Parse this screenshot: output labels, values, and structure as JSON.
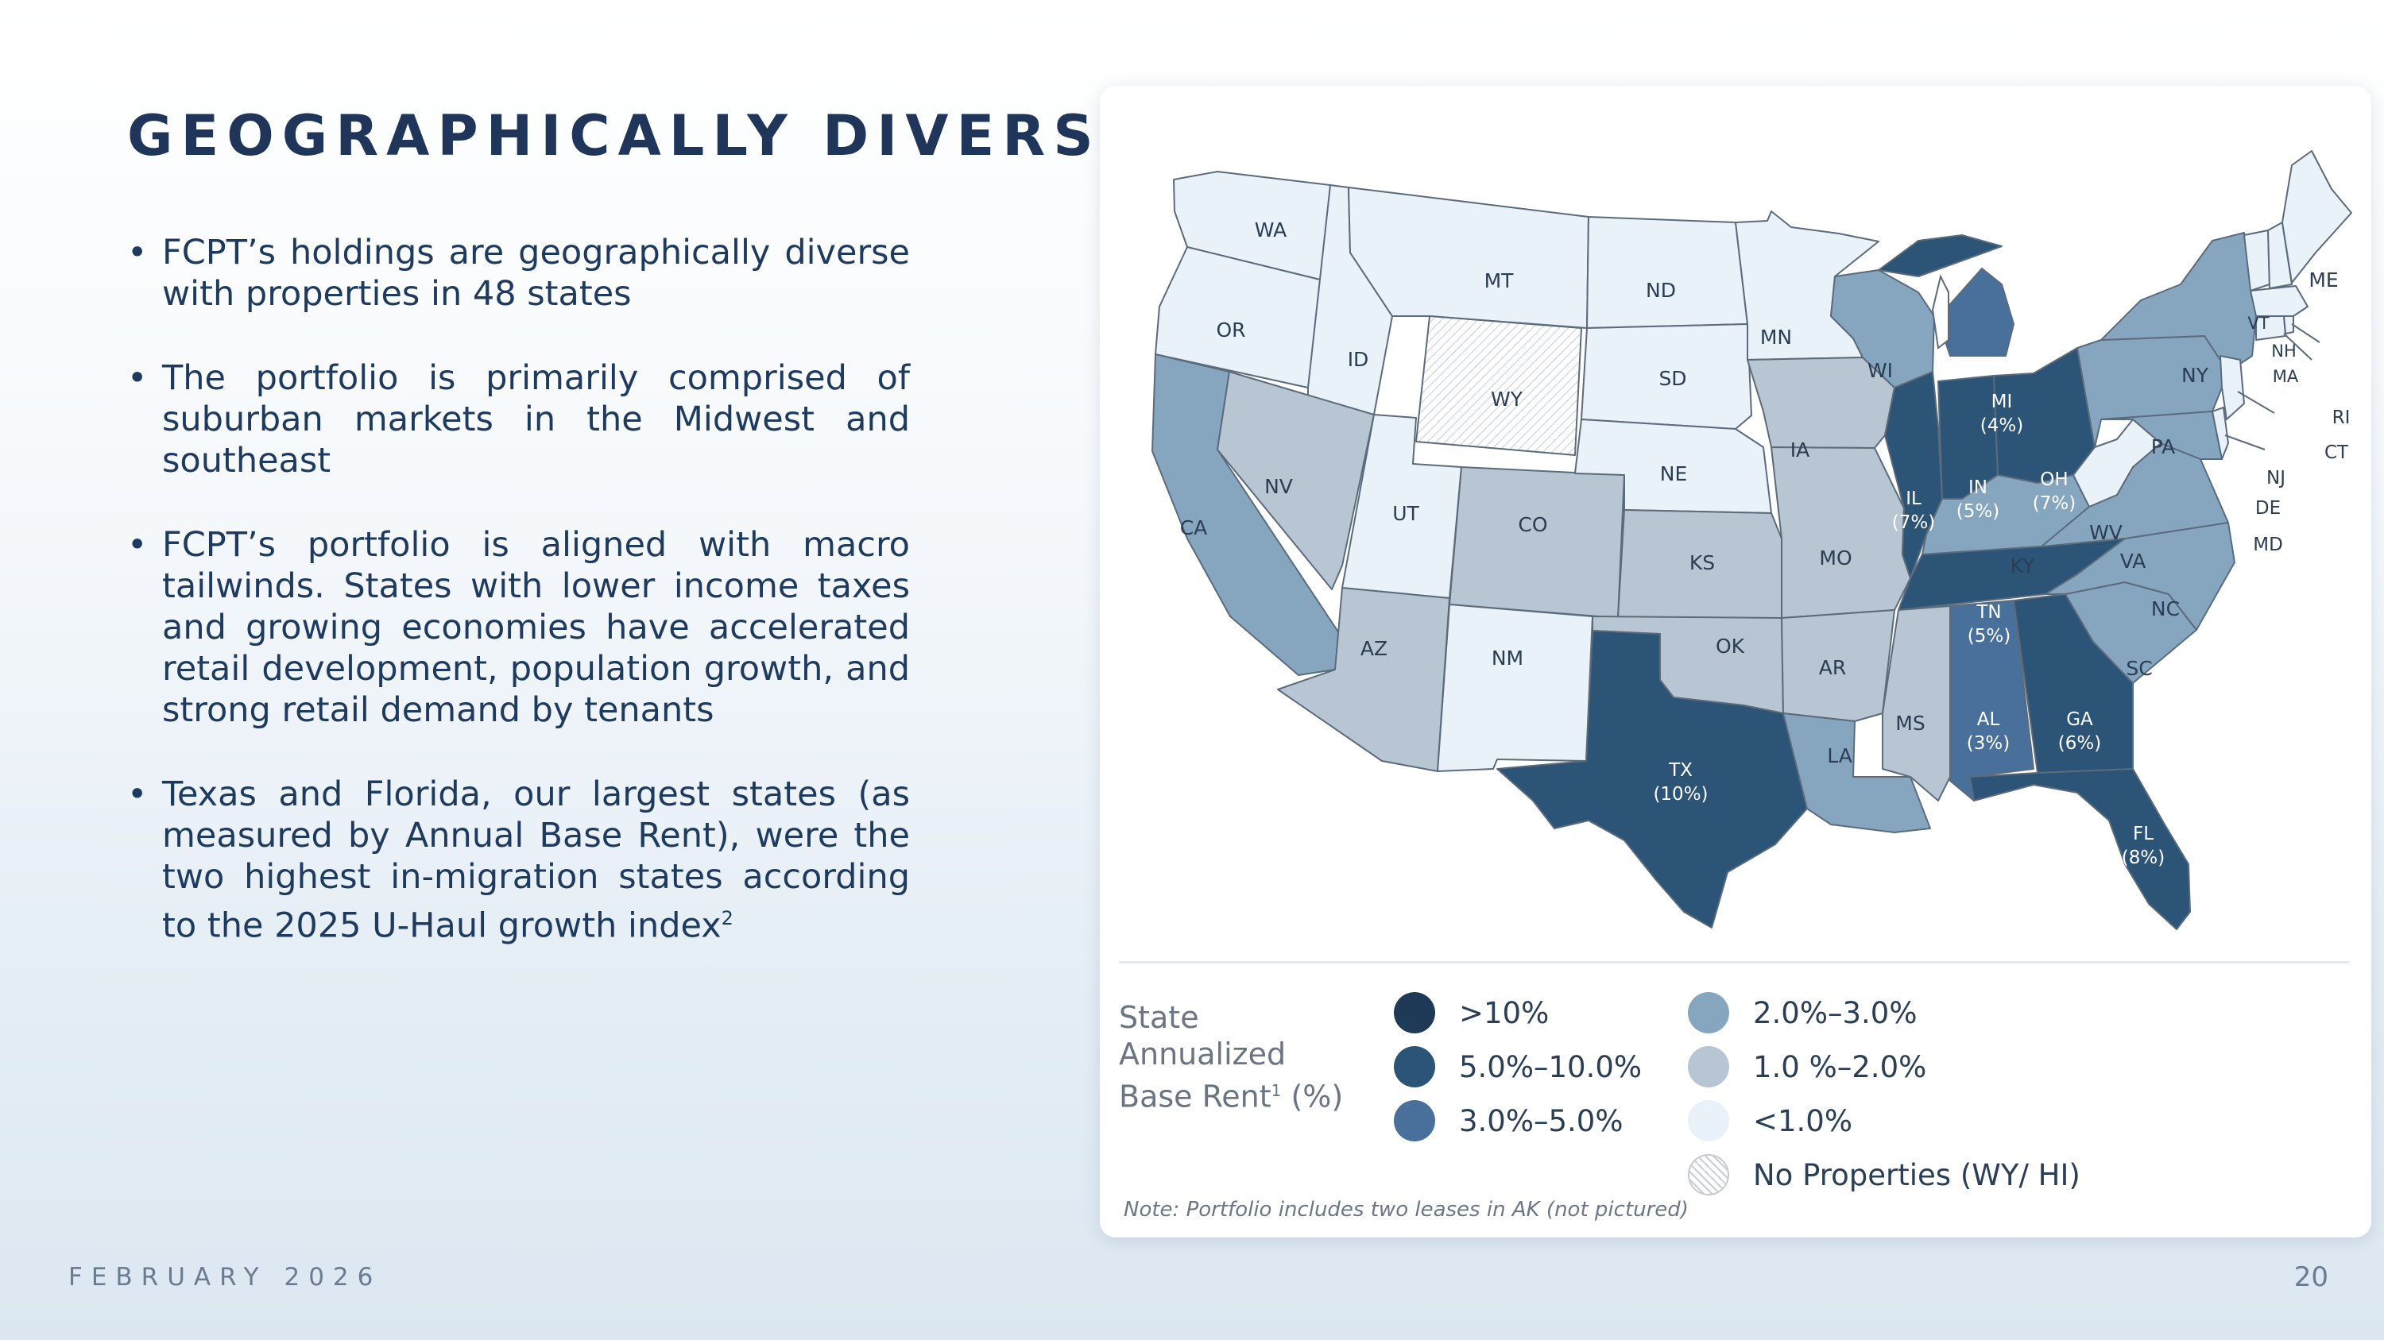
{
  "title": "GEOGRAPHICALLY DIVERSE",
  "bullets": [
    {
      "text": "FCPT’s holdings are geographically diverse with properties in 48 states",
      "sup": ""
    },
    {
      "text": "The portfolio is primarily comprised of suburban markets in the Midwest and southeast",
      "sup": ""
    },
    {
      "text": "FCPT’s portfolio is aligned with macro tailwinds. States with lower income taxes and growing economies have accelerated retail development, population growth, and strong retail demand by tenants",
      "sup": ""
    },
    {
      "text": "Texas and Florida, our largest states (as measured by Annual Base Rent), were the two highest in-migration states according to the 2025 U-Haul growth index",
      "sup": "2"
    }
  ],
  "footer": {
    "date": "FEBRUARY 2026",
    "page": "20"
  },
  "colors": {
    "gt10": "#1e3a57",
    "c5_10": "#2c5477",
    "c3_5": "#48709a",
    "c2_3": "#86a6c0",
    "c1_2": "#b8c5d2",
    "lt1": "#e9f1f9",
    "none": "#ffffff"
  },
  "map": {
    "labels": {
      "WA": "WA",
      "OR": "OR",
      "CA": "CA",
      "ID": "ID",
      "NV": "NV",
      "MT": "MT",
      "WY": "WY",
      "UT": "UT",
      "AZ": "AZ",
      "CO": "CO",
      "NM": "NM",
      "ND": "ND",
      "SD": "SD",
      "NE": "NE",
      "KS": "KS",
      "OK": "OK",
      "MN": "MN",
      "IA": "IA",
      "MO": "MO",
      "AR": "AR",
      "LA": "LA",
      "WI": "WI",
      "MS": "MS",
      "KY": "KY",
      "WV": "WV",
      "VA": "VA",
      "NC": "NC",
      "SC": "SC",
      "PA": "PA",
      "NY": "NY",
      "ME": "ME",
      "VT": "VT",
      "NH": "NH",
      "MA": "MA",
      "RI": "RI",
      "CT": "CT",
      "NJ": "NJ",
      "DE": "DE",
      "MD": "MD"
    },
    "pct_labels": {
      "TX": {
        "abbr": "TX",
        "pct": "(10%)"
      },
      "FL": {
        "abbr": "FL",
        "pct": "(8%)"
      },
      "IL": {
        "abbr": "IL",
        "pct": "(7%)"
      },
      "OH": {
        "abbr": "OH",
        "pct": "(7%)"
      },
      "GA": {
        "abbr": "GA",
        "pct": "(6%)"
      },
      "IN": {
        "abbr": "IN",
        "pct": "(5%)"
      },
      "TN": {
        "abbr": "TN",
        "pct": "(5%)"
      },
      "MI": {
        "abbr": "MI",
        "pct": "(4%)"
      },
      "AL": {
        "abbr": "AL",
        "pct": "(3%)"
      }
    }
  },
  "legend": {
    "title_line1": "State",
    "title_line2": "Annualized",
    "title_line3": "Base Rent",
    "title_sup": "1",
    "title_suffix": " (%)",
    "items": [
      {
        "label": ">10%",
        "color": "#1e3a57"
      },
      {
        "label": "5.0%–10.0%",
        "color": "#2c5477"
      },
      {
        "label": "3.0%–5.0%",
        "color": "#48709a"
      },
      {
        "label": "2.0%–3.0%",
        "color": "#86a6c0"
      },
      {
        "label": "1.0 %–2.0%",
        "color": "#b8c5d2"
      },
      {
        "label": "<1.0%",
        "color": "#e9f1f9"
      },
      {
        "label": "No Properties (WY/ HI)",
        "color": "none"
      }
    ]
  },
  "note": "Note: Portfolio includes two leases in AK (not pictured)"
}
